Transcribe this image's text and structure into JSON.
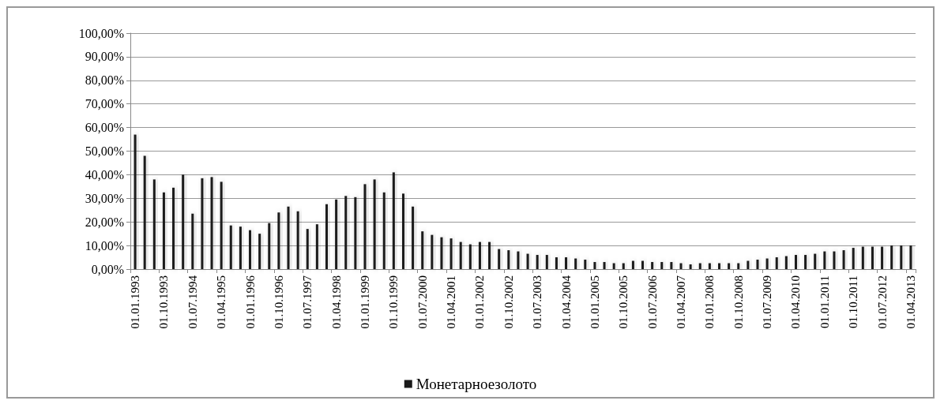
{
  "chart_data": {
    "type": "bar",
    "categories": [
      "01.01.1993",
      null,
      null,
      "01.10.1993",
      null,
      null,
      "01.07.1994",
      null,
      null,
      "01.04.1995",
      null,
      null,
      "01.01.1996",
      null,
      null,
      "01.10.1996",
      null,
      null,
      "01.07.1997",
      null,
      null,
      "01.04.1998",
      null,
      null,
      "01.01.1999",
      null,
      null,
      "01.10.1999",
      null,
      null,
      "01.07.2000",
      null,
      null,
      "01.04.2001",
      null,
      null,
      "01.01.2002",
      null,
      null,
      "01.10.2002",
      null,
      null,
      "01.07.2003",
      null,
      null,
      "01.04.2004",
      null,
      null,
      "01.01.2005",
      null,
      null,
      "01.10.2005",
      null,
      null,
      "01.07.2006",
      null,
      null,
      "01.04.2007",
      null,
      null,
      "01.01.2008",
      null,
      null,
      "01.10.2008",
      null,
      null,
      "01.07.2009",
      null,
      null,
      "01.04.2010",
      null,
      null,
      "01.01.2011",
      null,
      null,
      "01.10.2011",
      null,
      null,
      "01.07.2012",
      null,
      null,
      "01.04.2013"
    ],
    "series": [
      {
        "name": "Монетарноезолото",
        "color": "#1a1a1a",
        "values": [
          57,
          48,
          38,
          32.5,
          34.5,
          40,
          23.5,
          38.5,
          39,
          37,
          18.5,
          18,
          16.5,
          15,
          19.5,
          24,
          26.5,
          24.5,
          17,
          19,
          27.5,
          29.5,
          31,
          30.5,
          36,
          38,
          32.5,
          41,
          32,
          26.5,
          16,
          14.5,
          13.5,
          13,
          11.5,
          10.5,
          11.5,
          11.5,
          8.5,
          8,
          7.5,
          6.5,
          6,
          6,
          5,
          5,
          4.5,
          4,
          3,
          3,
          2.5,
          2.5,
          3.5,
          3.5,
          3,
          3,
          3,
          2.5,
          2,
          2.5,
          2.5,
          2.5,
          2.5,
          2.5,
          3.5,
          4,
          4.5,
          5,
          5.5,
          6,
          6,
          6.5,
          7.5,
          7.5,
          8,
          9,
          9.5,
          9.5,
          9.5,
          10,
          10,
          10
        ]
      }
    ],
    "ylim": [
      0,
      100
    ],
    "yticks": [
      {
        "value": 0,
        "label": "0,00%"
      },
      {
        "value": 10,
        "label": "10,00%"
      },
      {
        "value": 20,
        "label": "20,00%"
      },
      {
        "value": 30,
        "label": "30,00%"
      },
      {
        "value": 40,
        "label": "40,00%"
      },
      {
        "value": 50,
        "label": "50,00%"
      },
      {
        "value": 60,
        "label": "60,00%"
      },
      {
        "value": 70,
        "label": "70,00%"
      },
      {
        "value": 80,
        "label": "80,00%"
      },
      {
        "value": 90,
        "label": "90,00%"
      },
      {
        "value": 100,
        "label": "100,00%"
      }
    ],
    "grid": "y",
    "legend": "bottom"
  }
}
